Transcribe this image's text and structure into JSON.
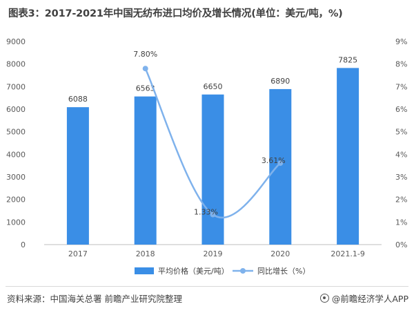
{
  "title": "图表3：2017-2021年中国无纺布进口均价及增长情况(单位：美元/吨，%)",
  "chart_data": {
    "type": "bar",
    "categories": [
      "2017",
      "2018",
      "2019",
      "2020",
      "2021.1-9"
    ],
    "series": [
      {
        "name": "平均价格（美元/吨）",
        "kind": "bar",
        "axis": "left",
        "values": [
          6088,
          6563,
          6650,
          6890,
          7825
        ],
        "labels": [
          "6088",
          "6563",
          "6650",
          "6890",
          "7825"
        ],
        "color": "#3a8ee6"
      },
      {
        "name": "同比增长（%）",
        "kind": "line",
        "axis": "right",
        "values": [
          null,
          7.8,
          1.33,
          3.61,
          null
        ],
        "labels": [
          "",
          "7.80%",
          "1.33%",
          "3.61%",
          ""
        ],
        "color": "#7fb2ec"
      }
    ],
    "y_left": {
      "min": 0,
      "max": 9000,
      "ticks": [
        "0",
        "1000",
        "2000",
        "3000",
        "4000",
        "5000",
        "6000",
        "7000",
        "8000",
        "9000"
      ]
    },
    "y_right": {
      "min": 0,
      "max": 9,
      "ticks": [
        "0%",
        "1%",
        "2%",
        "3%",
        "4%",
        "5%",
        "6%",
        "7%",
        "8%",
        "9%"
      ]
    },
    "grid": false,
    "legend_position": "bottom"
  },
  "footer": {
    "source": "资料来源：中国海关总署 前瞻产业研究院整理",
    "brand": "@前瞻经济学人APP"
  }
}
